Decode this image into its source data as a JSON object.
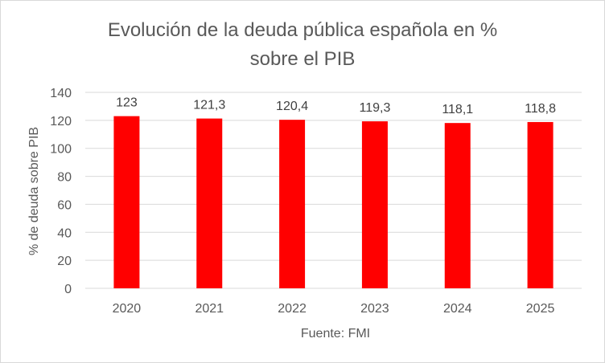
{
  "chart_data": {
    "type": "bar",
    "title_lines": [
      "Evolución de la deuda pública española en %",
      "sobre el PIB"
    ],
    "xlabel": "Fuente: FMI",
    "ylabel": "% de deuda sobre PIB",
    "categories": [
      "2020",
      "2021",
      "2022",
      "2023",
      "2024",
      "2025"
    ],
    "values": [
      123,
      121.3,
      120.4,
      119.3,
      118.1,
      118.8
    ],
    "data_labels": [
      "123",
      "121,3",
      "120,4",
      "119,3",
      "118,1",
      "118,8"
    ],
    "ylim": [
      0,
      140
    ],
    "yticks": [
      0,
      20,
      40,
      60,
      80,
      100,
      120,
      140
    ],
    "grid": true,
    "legend": "none",
    "bar_color": "#ff0000",
    "grid_color": "#d9d9d9"
  }
}
